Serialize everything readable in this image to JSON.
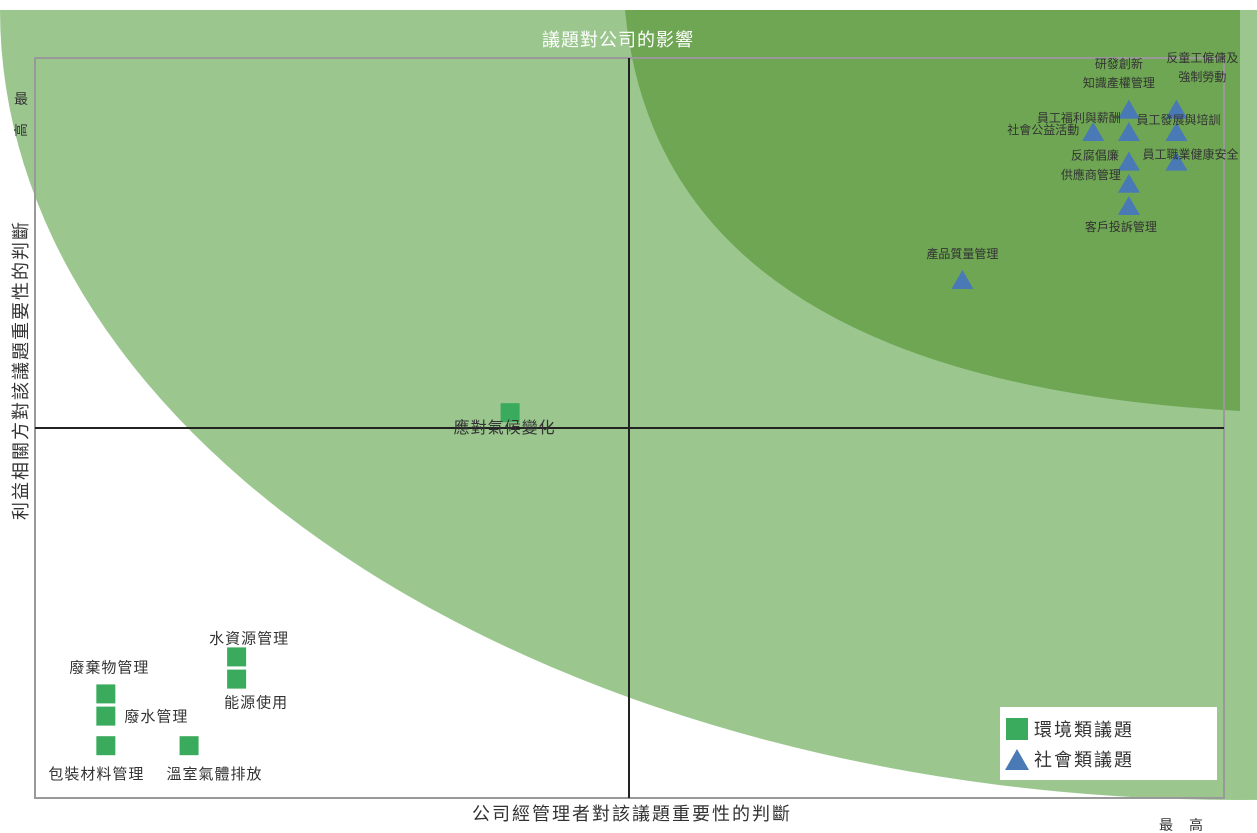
{
  "chart_data": {
    "type": "scatter",
    "title": "議題對公司的影響",
    "xlabel": "公司經管理者對該議題重要性的判斷",
    "ylabel": "利益相關方對該議題重要性的判斷",
    "x_high_label": "最高",
    "y_high_label": "最高",
    "xlim": [
      0,
      10
    ],
    "ylim": [
      0,
      10
    ],
    "grid": false,
    "quadrant_split": {
      "x": 5,
      "y": 5
    },
    "legend_placement": "bottom-right",
    "colors": {
      "environment": "#3aaa5c",
      "social": "#4a7ab5",
      "outer_region": "#9bc78f",
      "inner_region": "#6ea653",
      "frame": "#999999",
      "axis": "#222222"
    },
    "series": [
      {
        "name": "環境類議題",
        "marker": "square",
        "points": [
          {
            "label": "應對氣候變化",
            "x": 4.0,
            "y": 5.2
          },
          {
            "label": "水資源管理",
            "x": 1.7,
            "y": 1.9
          },
          {
            "label": "能源使用",
            "x": 1.7,
            "y": 1.6
          },
          {
            "label": "廢棄物管理",
            "x": 0.6,
            "y": 1.4
          },
          {
            "label": "廢水管理",
            "x": 0.6,
            "y": 1.1
          },
          {
            "label": "包裝材料管理",
            "x": 0.6,
            "y": 0.7
          },
          {
            "label": "溫室氣體排放",
            "x": 1.3,
            "y": 0.7
          }
        ]
      },
      {
        "name": "社會類議題",
        "marker": "triangle",
        "points": [
          {
            "label": "研發創新\n知識產權管理",
            "x": 9.2,
            "y": 9.3
          },
          {
            "label": "反童工僱傭及\n強制勞動",
            "x": 9.6,
            "y": 9.3
          },
          {
            "label": "員工福利與薪酬",
            "x": 9.2,
            "y": 9.0
          },
          {
            "label": "社會公益活動",
            "x": 8.9,
            "y": 9.0
          },
          {
            "label": "員工發展與培訓",
            "x": 9.6,
            "y": 9.0
          },
          {
            "label": "反腐倡廉",
            "x": 9.2,
            "y": 8.6
          },
          {
            "label": "員工職業健康安全",
            "x": 9.6,
            "y": 8.6
          },
          {
            "label": "供應商管理",
            "x": 9.2,
            "y": 8.3
          },
          {
            "label": "客戶投訴管理",
            "x": 9.2,
            "y": 8.0
          },
          {
            "label": "產品質量管理",
            "x": 7.8,
            "y": 7.0
          }
        ]
      }
    ]
  }
}
